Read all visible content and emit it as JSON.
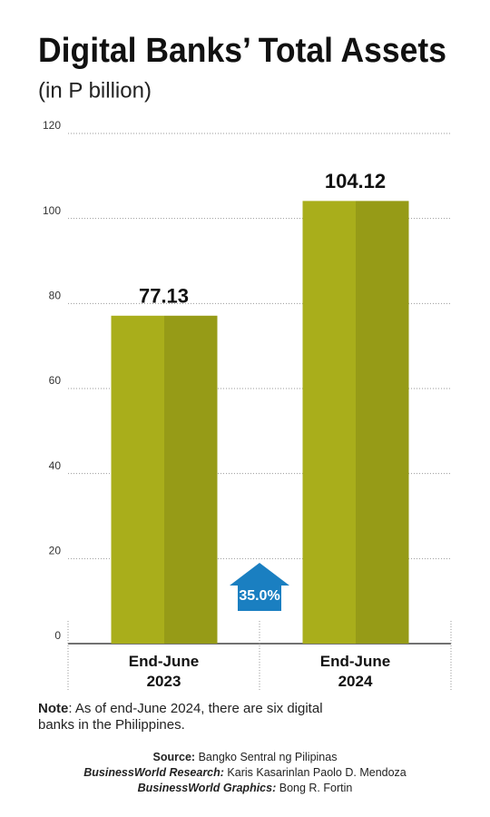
{
  "chart_data": {
    "type": "bar",
    "title": "Digital Banks’ Total Assets",
    "subtitle": "(in P billion)",
    "categories": [
      "End-June 2023",
      "End-June 2024"
    ],
    "values": [
      77.13,
      104.12
    ],
    "colors": [
      "#a9ae1b",
      "#969b17"
    ],
    "ylim": [
      0,
      120
    ],
    "yticks": [
      0,
      20,
      40,
      60,
      80,
      100,
      120
    ],
    "grid": true,
    "annotation": "35.0%",
    "annotation_color": "#1a7fc1"
  },
  "notes": {
    "note_label": "Note",
    "note": "As of end-June 2024, there are six digital banks in the Philippines."
  },
  "credits": [
    {
      "label": "Source:",
      "text": "Bangko Sentral ng Pilipinas"
    },
    {
      "label": "BusinessWorld Research:",
      "text": "Karis Kasarinlan Paolo D. Mendoza"
    },
    {
      "label": "BusinessWorld Graphics:",
      "text": "Bong R. Fortin"
    }
  ]
}
